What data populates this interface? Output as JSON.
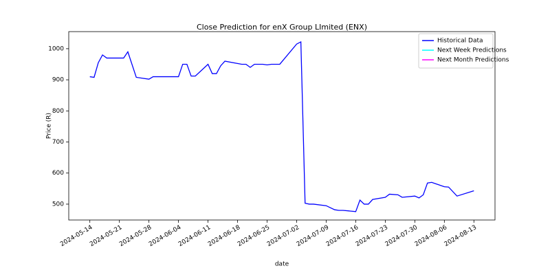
{
  "chart_data": {
    "type": "line",
    "title": "Close Prediction for enX Group LImited (ENX)",
    "x_label": "date",
    "y_label": "Price (R)",
    "xlim": [
      "2024-05-09",
      "2024-08-18"
    ],
    "xticks": [
      "2024-05-14",
      "2024-05-21",
      "2024-05-28",
      "2024-06-04",
      "2024-06-11",
      "2024-06-18",
      "2024-06-25",
      "2024-07-02",
      "2024-07-09",
      "2024-07-16",
      "2024-07-23",
      "2024-07-30",
      "2024-08-06",
      "2024-08-13"
    ],
    "ylim": [
      449,
      1055
    ],
    "yticks": [
      500,
      600,
      700,
      800,
      900,
      1000
    ],
    "legend": "upper right",
    "series": [
      {
        "name": "Historical Data",
        "color": "#0000ff",
        "x": [
          "2024-05-14",
          "2024-05-15",
          "2024-05-16",
          "2024-05-17",
          "2024-05-18",
          "2024-05-22",
          "2024-05-23",
          "2024-05-25",
          "2024-05-28",
          "2024-05-29",
          "2024-06-04",
          "2024-06-05",
          "2024-06-06",
          "2024-06-07",
          "2024-06-08",
          "2024-06-11",
          "2024-06-12",
          "2024-06-13",
          "2024-06-14",
          "2024-06-15",
          "2024-06-19",
          "2024-06-20",
          "2024-06-21",
          "2024-06-22",
          "2024-06-24",
          "2024-06-25",
          "2024-06-26",
          "2024-06-28",
          "2024-07-02",
          "2024-07-03",
          "2024-07-04",
          "2024-07-05",
          "2024-07-06",
          "2024-07-09",
          "2024-07-11",
          "2024-07-12",
          "2024-07-13",
          "2024-07-16",
          "2024-07-17",
          "2024-07-18",
          "2024-07-19",
          "2024-07-20",
          "2024-07-23",
          "2024-07-24",
          "2024-07-26",
          "2024-07-27",
          "2024-07-30",
          "2024-07-31",
          "2024-08-01",
          "2024-08-02",
          "2024-08-03",
          "2024-08-06",
          "2024-08-07",
          "2024-08-09",
          "2024-08-13"
        ],
        "values": [
          910,
          908,
          955,
          980,
          970,
          970,
          990,
          908,
          902,
          910,
          910,
          950,
          950,
          912,
          912,
          950,
          920,
          920,
          945,
          960,
          950,
          950,
          940,
          950,
          950,
          948,
          950,
          950,
          1015,
          1022,
          503,
          500,
          500,
          495,
          482,
          480,
          480,
          476,
          513,
          500,
          500,
          515,
          522,
          532,
          530,
          522,
          526,
          520,
          530,
          568,
          570,
          556,
          555,
          526,
          543
        ]
      },
      {
        "name": "Next Week Predictions",
        "color": "#00ffff",
        "x": [],
        "values": []
      },
      {
        "name": "Next Month Predictions",
        "color": "#ff00ff",
        "x": [],
        "values": []
      }
    ]
  }
}
